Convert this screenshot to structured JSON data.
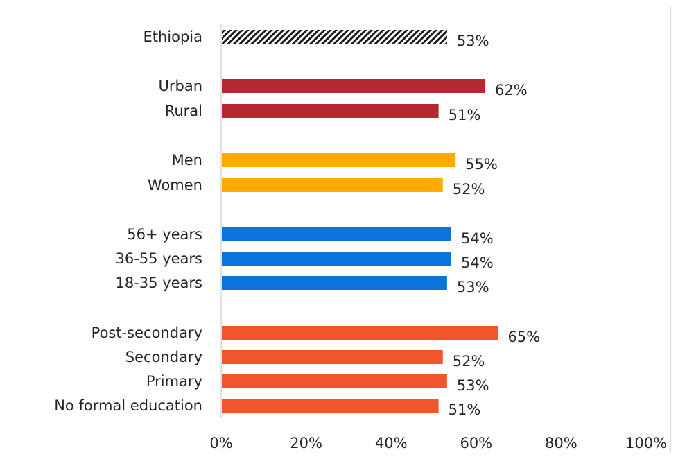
{
  "chart_data": {
    "type": "bar",
    "orientation": "horizontal",
    "xlim": [
      0,
      100
    ],
    "ticks": [
      "0%",
      "20%",
      "40%",
      "60%",
      "80%",
      "100%"
    ],
    "grid": false,
    "groups": [
      {
        "color": "#1a1a1a",
        "pattern": "hatched",
        "categories": [
          "Ethiopia"
        ],
        "values": [
          53
        ],
        "labels": [
          "53%"
        ]
      },
      {
        "color": "#b5282f",
        "categories": [
          "Urban",
          "Rural"
        ],
        "values": [
          62,
          51
        ],
        "labels": [
          "62%",
          "51%"
        ]
      },
      {
        "color": "#ffab00",
        "categories": [
          "Men",
          "Women"
        ],
        "values": [
          55,
          52
        ],
        "labels": [
          "55%",
          "52%"
        ]
      },
      {
        "color": "#0a74da",
        "categories": [
          "56+ years",
          "36-55 years",
          "18-35 years"
        ],
        "values": [
          54,
          54,
          53
        ],
        "labels": [
          "54%",
          "54%",
          "53%"
        ]
      },
      {
        "color": "#f2552c",
        "categories": [
          "Post-secondary",
          "Secondary",
          "Primary",
          "No formal education"
        ],
        "values": [
          65,
          52,
          53,
          51
        ],
        "labels": [
          "65%",
          "52%",
          "53%",
          "51%"
        ]
      }
    ]
  }
}
